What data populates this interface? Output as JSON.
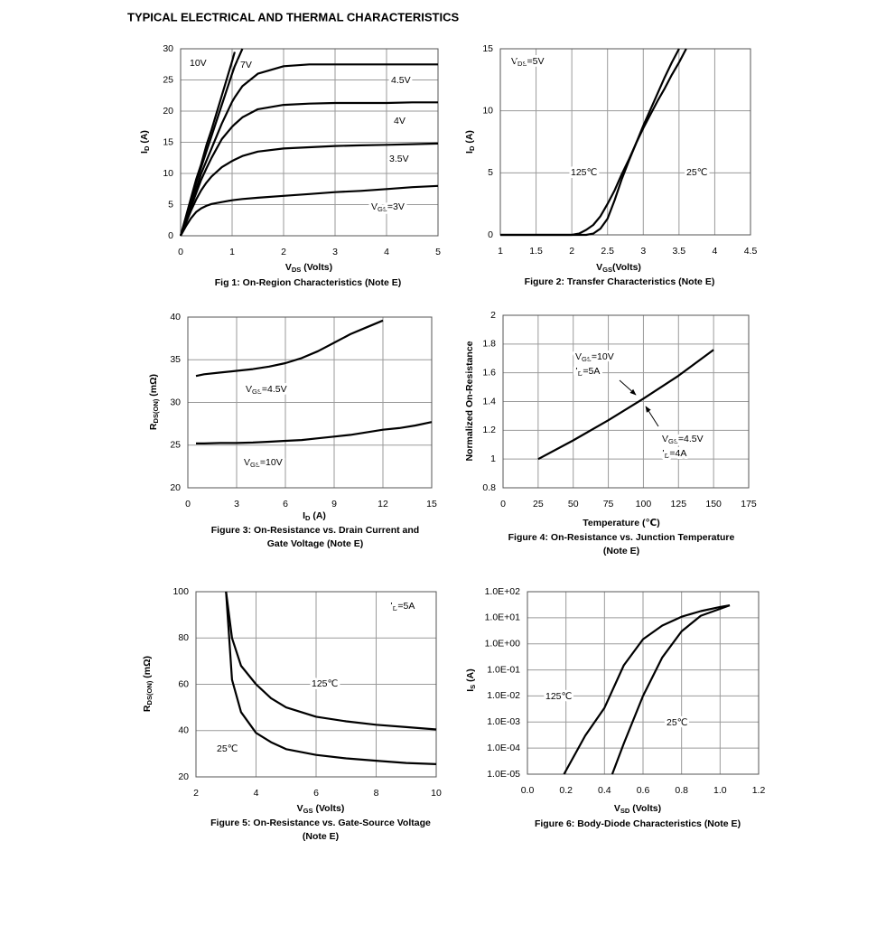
{
  "title": "TYPICAL ELECTRICAL AND THERMAL CHARACTERISTICS",
  "chart_data": [
    {
      "type": "line",
      "caption": [
        "Fig 1: On-Region Characteristics (Note E)"
      ],
      "xlabel": [
        "V",
        "DS",
        " (Volts)"
      ],
      "ylabel": [
        "I",
        "D",
        " (A)"
      ],
      "xlim": [
        0,
        5
      ],
      "xticks": [
        0,
        1,
        2,
        3,
        4,
        5
      ],
      "ylim": [
        0,
        30
      ],
      "yticks": [
        0,
        5,
        10,
        15,
        20,
        25,
        30
      ],
      "grid": true,
      "color": "#000000",
      "x": [
        0,
        0.1,
        0.2,
        0.3,
        0.4,
        0.5,
        0.6,
        0.8,
        1,
        1.05,
        1.2,
        1.5,
        2,
        2.5,
        3,
        3.5,
        4,
        4.5,
        5
      ],
      "series": [
        {
          "name": [
            "10V"
          ],
          "values": [
            0,
            3,
            6,
            9,
            11.5,
            14.5,
            17,
            22.5,
            28,
            29.5,
            null,
            null,
            null,
            null,
            null,
            null,
            null,
            null,
            null
          ]
        },
        {
          "name": [
            "7V"
          ],
          "values": [
            0,
            2.8,
            5.5,
            8.5,
            11,
            13.5,
            16,
            21,
            26,
            27.2,
            30,
            null,
            null,
            null,
            null,
            null,
            null,
            null,
            null
          ]
        },
        {
          "name": [
            "4.5V"
          ],
          "values": [
            0,
            2.5,
            5,
            7.5,
            10,
            12,
            14,
            18,
            21.5,
            22.2,
            24,
            26,
            27.2,
            27.5,
            27.5,
            27.5,
            27.5,
            27.5,
            27.5
          ]
        },
        {
          "name": [
            "4V"
          ],
          "values": [
            0,
            2.3,
            4.6,
            6.8,
            9,
            10.8,
            12.5,
            15.5,
            17.5,
            17.9,
            19,
            20.3,
            21,
            21.2,
            21.3,
            21.3,
            21.3,
            21.4,
            21.4
          ]
        },
        {
          "name": [
            "3.5V"
          ],
          "values": [
            0,
            2,
            4,
            5.8,
            7.3,
            8.5,
            9.5,
            11,
            12,
            12.2,
            12.8,
            13.5,
            14,
            14.2,
            14.4,
            14.5,
            14.6,
            14.7,
            14.8
          ]
        },
        {
          "name": [
            "V",
            "GS",
            "=3V"
          ],
          "values": [
            0,
            1.5,
            2.8,
            3.8,
            4.4,
            4.8,
            5.1,
            5.4,
            5.7,
            5.75,
            5.9,
            6.1,
            6.4,
            6.7,
            7,
            7.2,
            7.5,
            7.8,
            8
          ]
        }
      ],
      "annotations": []
    },
    {
      "type": "line",
      "caption": [
        "Figure 2: Transfer Characteristics (Note E)"
      ],
      "xlabel": [
        "V",
        "GS",
        "(Volts)"
      ],
      "ylabel": [
        "I",
        "D",
        " (A)"
      ],
      "xlim": [
        1,
        4.5
      ],
      "xticks": [
        1,
        1.5,
        2,
        2.5,
        3,
        3.5,
        4,
        4.5
      ],
      "ylim": [
        0,
        15
      ],
      "yticks": [
        0,
        5,
        10,
        15
      ],
      "grid": true,
      "color": "#000000",
      "x": [
        1,
        1.5,
        2,
        2.1,
        2.2,
        2.3,
        2.4,
        2.5,
        2.6,
        2.7,
        2.8,
        2.9,
        3,
        3.1,
        3.2,
        3.3,
        3.4,
        3.5,
        3.6
      ],
      "series": [
        {
          "name": [
            "125℃"
          ],
          "values": [
            0,
            0,
            0,
            0.1,
            0.4,
            0.8,
            1.5,
            2.5,
            3.6,
            4.9,
            6.1,
            7.4,
            8.6,
            9.7,
            10.8,
            11.8,
            12.9,
            13.9,
            15
          ]
        },
        {
          "name": [
            "25℃"
          ],
          "values": [
            0,
            0,
            0,
            0,
            0,
            0.1,
            0.5,
            1.3,
            2.8,
            4.5,
            6,
            7.4,
            8.8,
            10.1,
            11.4,
            12.7,
            13.9,
            15,
            null
          ]
        }
      ],
      "annotations": [
        [
          "V",
          "DS",
          "=5V"
        ]
      ]
    },
    {
      "type": "line",
      "caption": [
        "Figure 3: On-Resistance vs. Drain Current and",
        "Gate Voltage (Note E)"
      ],
      "xlabel": [
        "I",
        "D",
        " (A)"
      ],
      "ylabel": [
        "R",
        "DS(ON)",
        " (mΩ)"
      ],
      "xlim": [
        0,
        15
      ],
      "xticks": [
        0,
        3,
        6,
        9,
        12,
        15
      ],
      "ylim": [
        20,
        40
      ],
      "yticks": [
        20,
        25,
        30,
        35,
        40
      ],
      "grid": true,
      "color": "#000000",
      "x": [
        0.5,
        1,
        2,
        3,
        4,
        5,
        6,
        7,
        8,
        9,
        10,
        11,
        12,
        13,
        14,
        15
      ],
      "series": [
        {
          "name": [
            "V",
            "GS",
            "=4.5V"
          ],
          "values": [
            33.1,
            33.3,
            33.5,
            33.7,
            33.9,
            34.2,
            34.6,
            35.2,
            36,
            37,
            38,
            38.8,
            39.6,
            null,
            null,
            null
          ]
        },
        {
          "name": [
            "V",
            "GS",
            "=10V"
          ],
          "values": [
            25.2,
            25.2,
            25.25,
            25.25,
            25.3,
            25.4,
            25.5,
            25.6,
            25.8,
            26,
            26.2,
            26.5,
            26.8,
            27,
            27.3,
            27.7
          ]
        }
      ],
      "annotations": []
    },
    {
      "type": "line",
      "caption": [
        "Figure 4: On-Resistance vs. Junction Temperature",
        "(Note E)"
      ],
      "xlabel": [
        "Temperature (℃)"
      ],
      "ylabel": [
        "Normalized On-Resistance"
      ],
      "xlim": [
        0,
        175
      ],
      "xticks": [
        0,
        25,
        50,
        75,
        100,
        125,
        150,
        175
      ],
      "ylim": [
        0.8,
        2
      ],
      "yticks": [
        0.8,
        1,
        1.2,
        1.4,
        1.6,
        1.8,
        2
      ],
      "grid": true,
      "color": "#000000",
      "x": [
        25,
        50,
        75,
        100,
        125,
        150
      ],
      "series": [
        {
          "values": [
            1,
            1.13,
            1.27,
            1.42,
            1.58,
            1.76
          ]
        }
      ],
      "annotations": [
        [
          "V",
          "GS",
          "=10V"
        ],
        [
          "I",
          "D",
          "=5A"
        ],
        [
          "V",
          "GS",
          "=4.5V"
        ],
        [
          "I",
          "D",
          "=4A"
        ]
      ]
    },
    {
      "type": "line",
      "caption": [
        "Figure 5: On-Resistance vs. Gate-Source Voltage",
        "(Note E)"
      ],
      "xlabel": [
        "V",
        "GS",
        " (Volts)"
      ],
      "ylabel": [
        "R",
        "DS(ON)",
        " (mΩ)"
      ],
      "xlim": [
        2,
        10
      ],
      "xticks": [
        2,
        4,
        6,
        8,
        10
      ],
      "ylim": [
        20,
        100
      ],
      "yticks": [
        20,
        40,
        60,
        80,
        100
      ],
      "grid": true,
      "color": "#000000",
      "x": [
        3,
        3.2,
        3.5,
        4,
        4.5,
        5,
        6,
        7,
        8,
        9,
        10
      ],
      "series": [
        {
          "name": [
            "125℃"
          ],
          "values": [
            100,
            80,
            68,
            60,
            54,
            50,
            46,
            44,
            42.5,
            41.5,
            40.5
          ]
        },
        {
          "name": [
            "25℃"
          ],
          "values": [
            100,
            62,
            48,
            39,
            35,
            32,
            29.5,
            28,
            27,
            26,
            25.5
          ]
        }
      ],
      "annotations": [
        [
          "I",
          "D",
          "=5A"
        ]
      ]
    },
    {
      "type": "line",
      "caption": [
        "Figure 6: Body-Diode Characteristics (Note E)"
      ],
      "xlabel": [
        "V",
        "SD",
        " (Volts)"
      ],
      "ylabel": [
        "I",
        "S",
        " (A)"
      ],
      "xlim": [
        0,
        1.2
      ],
      "xticks": [
        {
          "value": 0,
          "label": "0.0"
        },
        0.2,
        0.4,
        0.6,
        0.8,
        {
          "value": 1,
          "label": "1.0"
        },
        1.2
      ],
      "ylim": [
        1e-05,
        100
      ],
      "yscale": "log",
      "yticks": [
        {
          "value": 1e-05,
          "label": "1.0E-05"
        },
        {
          "value": 0.0001,
          "label": "1.0E-04"
        },
        {
          "value": 0.001,
          "label": "1.0E-03"
        },
        {
          "value": 0.01,
          "label": "1.0E-02"
        },
        {
          "value": 0.1,
          "label": "1.0E-01"
        },
        {
          "value": 1,
          "label": "1.0E+00"
        },
        {
          "value": 10,
          "label": "1.0E+01"
        },
        {
          "value": 100,
          "label": "1.0E+02"
        }
      ],
      "grid": true,
      "color": "#000000",
      "series": [
        {
          "name": [
            "125℃"
          ],
          "x": [
            0.19,
            0.3,
            0.4,
            0.5,
            0.6,
            0.7,
            0.8,
            0.9,
            1,
            1.05
          ],
          "values": [
            1e-05,
            0.0003,
            0.0035,
            0.15,
            1.5,
            5,
            11,
            18,
            26,
            30
          ]
        },
        {
          "name": [
            "25℃"
          ],
          "x": [
            0.44,
            0.5,
            0.6,
            0.7,
            0.8,
            0.9,
            1,
            1.05
          ],
          "values": [
            1e-05,
            0.00015,
            0.01,
            0.3,
            3,
            12,
            22,
            30
          ]
        }
      ],
      "annotations": []
    }
  ]
}
